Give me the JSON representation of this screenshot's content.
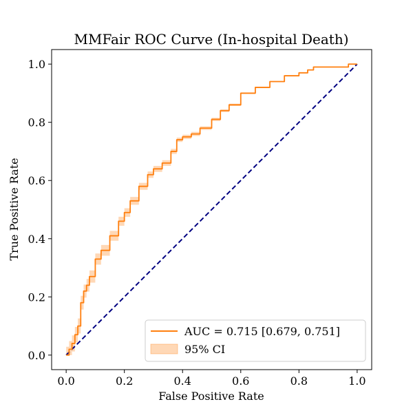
{
  "chart_data": {
    "type": "line",
    "title": "MMFair ROC Curve (In-hospital Death)",
    "xlabel": "False Positive Rate",
    "ylabel": "True Positive Rate",
    "xlim": [
      -0.05,
      1.05
    ],
    "ylim": [
      -0.05,
      1.05
    ],
    "xticks": [
      0.0,
      0.2,
      0.4,
      0.6,
      0.8,
      1.0
    ],
    "yticks": [
      0.0,
      0.2,
      0.4,
      0.6,
      0.8,
      1.0
    ],
    "xtick_labels": [
      "0.0",
      "0.2",
      "0.4",
      "0.6",
      "0.8",
      "1.0"
    ],
    "ytick_labels": [
      "0.0",
      "0.2",
      "0.4",
      "0.6",
      "0.8",
      "1.0"
    ],
    "grid": false,
    "legend_position": "lower-right",
    "series": [
      {
        "name": "AUC = 0.715 [0.679, 0.751]",
        "kind": "roc",
        "color": "#ff7f0e",
        "x": [
          0.0,
          0.01,
          0.02,
          0.03,
          0.04,
          0.05,
          0.06,
          0.07,
          0.08,
          0.1,
          0.12,
          0.15,
          0.18,
          0.2,
          0.22,
          0.25,
          0.28,
          0.3,
          0.33,
          0.36,
          0.38,
          0.4,
          0.43,
          0.46,
          0.5,
          0.53,
          0.56,
          0.6,
          0.65,
          0.7,
          0.75,
          0.8,
          0.83,
          0.85,
          0.9,
          0.95,
          0.97,
          1.0
        ],
        "y": [
          0.0,
          0.02,
          0.04,
          0.07,
          0.1,
          0.18,
          0.22,
          0.24,
          0.27,
          0.33,
          0.36,
          0.41,
          0.46,
          0.49,
          0.53,
          0.58,
          0.62,
          0.64,
          0.66,
          0.7,
          0.74,
          0.75,
          0.76,
          0.78,
          0.81,
          0.84,
          0.86,
          0.9,
          0.92,
          0.94,
          0.96,
          0.97,
          0.98,
          0.99,
          0.99,
          0.99,
          1.0,
          1.0
        ]
      },
      {
        "name": "95% CI",
        "kind": "band",
        "color": "#ff7f0e",
        "ci_halfwidth": 0.018
      },
      {
        "name": "",
        "kind": "chance",
        "color": "#000080",
        "x": [
          0.0,
          1.0
        ],
        "y": [
          0.0,
          1.0
        ]
      }
    ]
  }
}
